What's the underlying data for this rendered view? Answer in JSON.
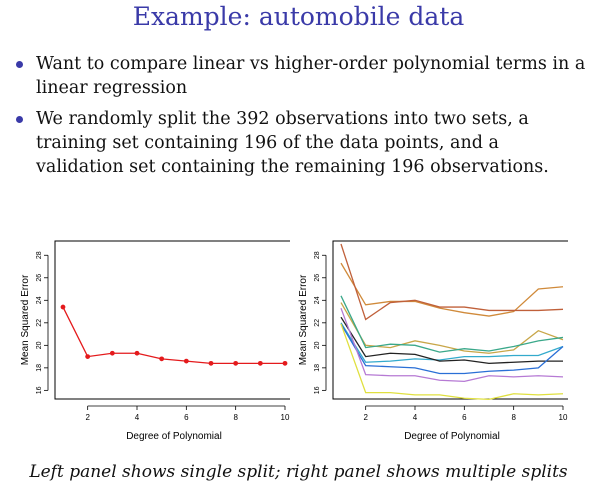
{
  "slide": {
    "title": "Example: automobile data",
    "bullets": [
      "Want to compare linear vs higher-order polynomial terms in a linear regression",
      "We randomly split the 392 observations into two sets, a training set containing 196 of the data points, and a validation set containing the remaining 196 observations."
    ],
    "caption": "Left panel shows single split; right panel shows multiple splits"
  },
  "chart_data": [
    {
      "type": "line",
      "title": "",
      "xlabel": "Degree of Polynomial",
      "ylabel": "Mean Squared Error",
      "xlim": [
        1,
        10
      ],
      "ylim": [
        15.5,
        29
      ],
      "xticks": [
        2,
        4,
        6,
        8,
        10
      ],
      "yticks": [
        16,
        18,
        20,
        22,
        24,
        26,
        28
      ],
      "x": [
        1,
        2,
        3,
        4,
        5,
        6,
        7,
        8,
        9,
        10
      ],
      "series": [
        {
          "color": "#e41a1c",
          "values": [
            23.4,
            19.0,
            19.3,
            19.3,
            18.8,
            18.6,
            18.4,
            18.4,
            18.4,
            18.4
          ]
        }
      ],
      "markers": true,
      "grid": false
    },
    {
      "type": "line",
      "title": "",
      "xlabel": "Degree of Polynomial",
      "ylabel": "Mean Squared Error",
      "xlim": [
        1,
        10
      ],
      "ylim": [
        15.5,
        29
      ],
      "xticks": [
        2,
        4,
        6,
        8,
        10
      ],
      "yticks": [
        16,
        18,
        20,
        22,
        24,
        26,
        28
      ],
      "x": [
        1,
        2,
        3,
        4,
        5,
        6,
        7,
        8,
        9,
        10
      ],
      "series": [
        {
          "color": "#d08a3a",
          "values": [
            27.3,
            23.6,
            23.9,
            23.9,
            23.3,
            22.9,
            22.6,
            23.0,
            25.0,
            25.2
          ]
        },
        {
          "color": "#c0603a",
          "values": [
            29.0,
            22.3,
            23.8,
            24.0,
            23.4,
            23.4,
            23.1,
            23.1,
            23.1,
            23.2
          ]
        },
        {
          "color": "#c8a648",
          "values": [
            23.8,
            20.0,
            19.8,
            20.4,
            20.0,
            19.5,
            19.3,
            19.6,
            21.3,
            20.5
          ]
        },
        {
          "color": "#3aa88a",
          "values": [
            24.4,
            19.8,
            20.1,
            20.0,
            19.4,
            19.7,
            19.5,
            19.9,
            20.4,
            20.7
          ]
        },
        {
          "color": "#33aacc",
          "values": [
            22.0,
            18.5,
            18.6,
            18.8,
            18.7,
            19.0,
            19.0,
            19.1,
            19.1,
            19.9
          ]
        },
        {
          "color": "#222222",
          "values": [
            22.5,
            19.0,
            19.3,
            19.2,
            18.6,
            18.7,
            18.4,
            18.5,
            18.6,
            18.6
          ]
        },
        {
          "color": "#2a6fd6",
          "values": [
            21.9,
            18.2,
            18.1,
            18.0,
            17.5,
            17.5,
            17.7,
            17.8,
            18.0,
            19.9
          ]
        },
        {
          "color": "#b67ad4",
          "values": [
            23.3,
            17.4,
            17.3,
            17.3,
            16.9,
            16.8,
            17.3,
            17.2,
            17.3,
            17.2
          ]
        },
        {
          "color": "#e0e040",
          "values": [
            21.9,
            15.8,
            15.8,
            15.6,
            15.6,
            15.3,
            15.2,
            15.7,
            15.6,
            15.7
          ]
        }
      ],
      "markers": false,
      "grid": false
    }
  ]
}
